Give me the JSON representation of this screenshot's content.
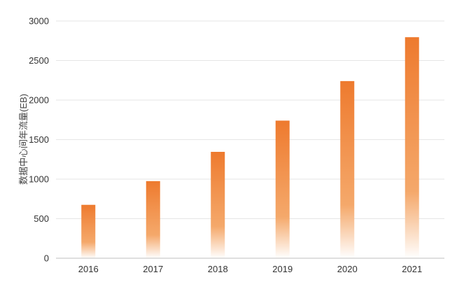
{
  "chart_data": {
    "type": "bar",
    "title": "",
    "xlabel": "",
    "ylabel": "数据中心间年流量(EB)",
    "categories": [
      "2016",
      "2017",
      "2018",
      "2019",
      "2020",
      "2021"
    ],
    "values": [
      675,
      975,
      1345,
      1740,
      2240,
      2795
    ],
    "ylim": [
      0,
      3000
    ],
    "yticks": [
      0,
      500,
      1000,
      1500,
      2000,
      2500,
      3000
    ],
    "grid": true,
    "legend": "none",
    "colors": {
      "bar_top": "#ee7a2e",
      "bar_bottom": "#ffffff",
      "grid": "#e6e6e6",
      "axis": "#bfbfbf"
    }
  }
}
